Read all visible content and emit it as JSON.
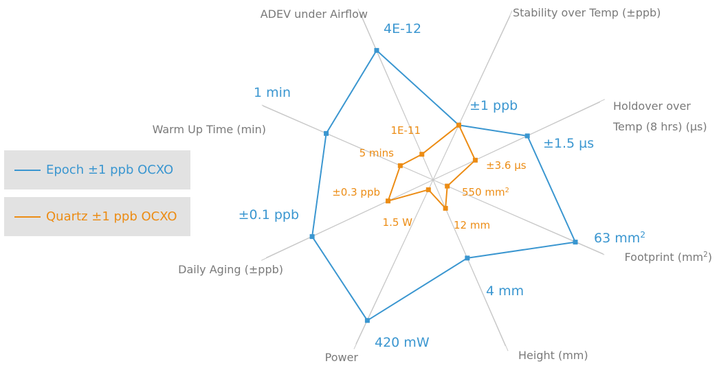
{
  "chart_data": {
    "type": "radar",
    "axes": [
      {
        "id": "adev",
        "label": "ADEV under Airflow"
      },
      {
        "id": "stability",
        "label": "Stability over Temp (±ppb)"
      },
      {
        "id": "holdover",
        "label_lines": [
          "Holdover over",
          "Temp (8 hrs) (µs)"
        ]
      },
      {
        "id": "footprint",
        "label": "Footprint (mm",
        "label_sup": "2",
        "label_tail": ")"
      },
      {
        "id": "height",
        "label": "Height (mm)"
      },
      {
        "id": "power",
        "label": "Power"
      },
      {
        "id": "aging",
        "label": "Daily Aging (±ppb)"
      },
      {
        "id": "warmup",
        "label": "Warm Up Time (min)"
      }
    ],
    "legend": "left",
    "series": [
      {
        "name": "Epoch ±1 ppb OCXO",
        "color": "#3a96d0",
        "scores": [
          0.91,
          0.39,
          0.67,
          1.0,
          0.55,
          1.0,
          0.86,
          0.75
        ],
        "value_labels": [
          {
            "text": "4E-12"
          },
          {
            "text": "±1 ppb"
          },
          {
            "text": "±1.5 µs"
          },
          {
            "text": "63 mm",
            "sup": "2"
          },
          {
            "text": "4 mm"
          },
          {
            "text": "420 mW"
          },
          {
            "text": "±0.1 ppb"
          },
          {
            "text": "1 min"
          }
        ]
      },
      {
        "name": "Quartz ±1 ppb OCXO",
        "color": "#ec8c14",
        "scores": [
          0.18,
          0.39,
          0.3,
          0.1,
          0.2,
          0.07,
          0.32,
          0.23
        ],
        "value_labels": [
          {
            "text": "1E-11"
          },
          {
            "text": ""
          },
          {
            "text": "±3.6 µs"
          },
          {
            "text": "550 mm",
            "sup": "2"
          },
          {
            "text": "12 mm"
          },
          {
            "text": "1.5 W"
          },
          {
            "text": "±0.3 ppb"
          },
          {
            "text": "5 mins"
          }
        ]
      }
    ]
  }
}
